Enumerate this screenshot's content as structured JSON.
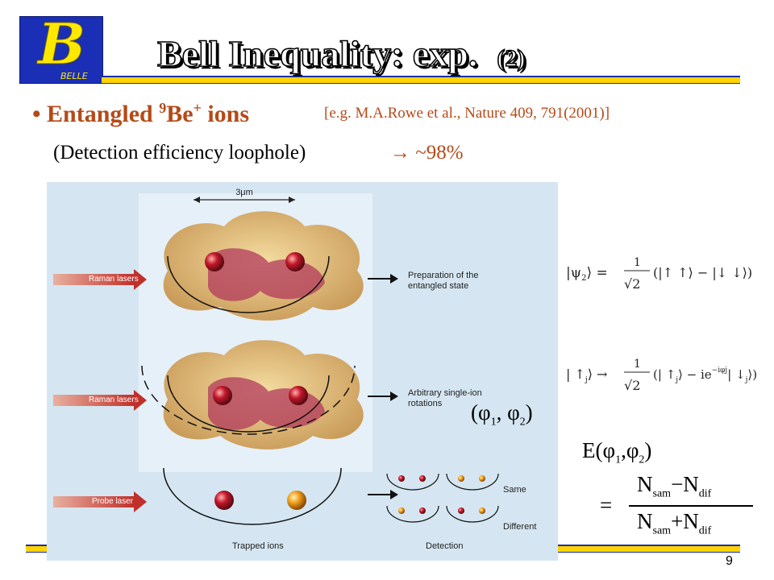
{
  "logo": {
    "letter": "B",
    "name": "BELLE"
  },
  "title": {
    "main": "Bell Inequality: exp.",
    "suffix": "(2)"
  },
  "bullet": {
    "marker": "•",
    "text_before": "Entangled ",
    "mass_number": "9",
    "element": "Be",
    "charge": "+",
    "text_after": " ions"
  },
  "reference": "[e.g. M.A.Rowe et al., Nature 409, 791(2001)]",
  "detection": {
    "label": "(Detection efficiency loophole)",
    "arrow_value": "→ ~98%"
  },
  "figure": {
    "scale_label": "3μm",
    "laser_labels": [
      "Raman lasers",
      "Raman lasers",
      "Probe laser"
    ],
    "step_labels": [
      "Preparation of the",
      "entangled state",
      "Arbitrary single-ion",
      "rotations"
    ],
    "trapped_ions": "Trapped ions",
    "detection": "Detection",
    "same": "Same",
    "different": "Different"
  },
  "equations": {
    "psi_state": "|ψ₂⟩ = (1/√2)(|↑↑⟩ − |↓↓⟩)",
    "rotation": "|↑ⱼ⟩ → (1/√2)(|↑ⱼ⟩ − ie^{−iφⱼ}|↓ⱼ⟩)",
    "phis": {
      "open": "(φ",
      "s1": "1",
      "mid": ", φ",
      "s2": "2",
      "close": ")"
    },
    "E": {
      "open": "E(φ",
      "s1": "1",
      "mid": ",φ",
      "s2": "2",
      "close": ")"
    },
    "equals": "=",
    "numerator": {
      "a": "N",
      "a_sub": "sam",
      "op": "−N",
      "b_sub": "dif"
    },
    "denominator": {
      "a": "N",
      "a_sub": "sam",
      "op": "+N",
      "b_sub": "dif"
    }
  },
  "page_number": "9",
  "colors": {
    "bar_yellow": "#ffd400",
    "bar_blue": "#1b2fa8",
    "accent": "#b54a18",
    "figure_bg": "#d5e6f2"
  }
}
